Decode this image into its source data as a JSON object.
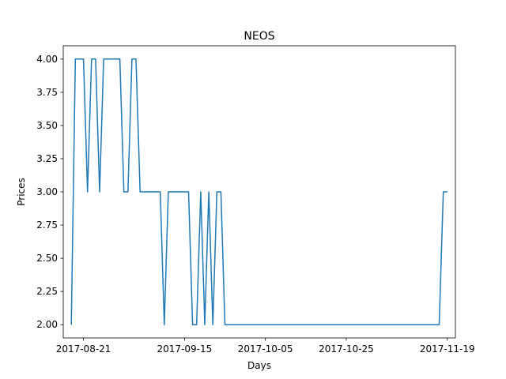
{
  "chart_data": {
    "type": "line",
    "title": "NEOS",
    "xlabel": "Days",
    "ylabel": "Prices",
    "x_ticks": [
      "2017-08-21",
      "2017-09-15",
      "2017-10-05",
      "2017-10-25",
      "2017-11-19"
    ],
    "y_ticks": [
      "2.00",
      "2.25",
      "2.50",
      "2.75",
      "3.00",
      "3.25",
      "3.50",
      "3.75",
      "4.00"
    ],
    "xlim": [
      "2017-08-16",
      "2017-11-21"
    ],
    "ylim": [
      1.9,
      4.1
    ],
    "grid": false,
    "line_color": "#1f77b4",
    "series": [
      {
        "x": [
          "2017-08-18",
          "2017-08-19",
          "2017-08-20",
          "2017-08-21",
          "2017-08-22",
          "2017-08-23",
          "2017-08-24",
          "2017-08-25",
          "2017-08-26",
          "2017-08-27",
          "2017-08-28",
          "2017-08-29",
          "2017-08-30",
          "2017-08-31",
          "2017-09-01",
          "2017-09-02",
          "2017-09-03",
          "2017-09-04",
          "2017-09-05",
          "2017-09-06",
          "2017-09-07",
          "2017-09-08",
          "2017-09-09",
          "2017-09-10",
          "2017-09-11",
          "2017-09-12",
          "2017-09-13",
          "2017-09-14",
          "2017-09-15",
          "2017-09-16",
          "2017-09-17",
          "2017-09-18",
          "2017-09-19",
          "2017-09-20",
          "2017-09-21",
          "2017-09-22",
          "2017-09-23",
          "2017-09-24",
          "2017-09-25",
          "2017-09-26",
          "2017-11-17",
          "2017-11-18",
          "2017-11-19"
        ],
        "y": [
          2,
          4,
          4,
          4,
          3,
          4,
          4,
          3,
          4,
          4,
          4,
          4,
          4,
          3,
          3,
          4,
          4,
          3,
          3,
          3,
          3,
          3,
          3,
          2,
          3,
          3,
          3,
          3,
          3,
          3,
          2,
          2,
          3,
          2,
          3,
          2,
          3,
          3,
          2,
          2,
          2,
          3,
          3
        ]
      }
    ]
  }
}
